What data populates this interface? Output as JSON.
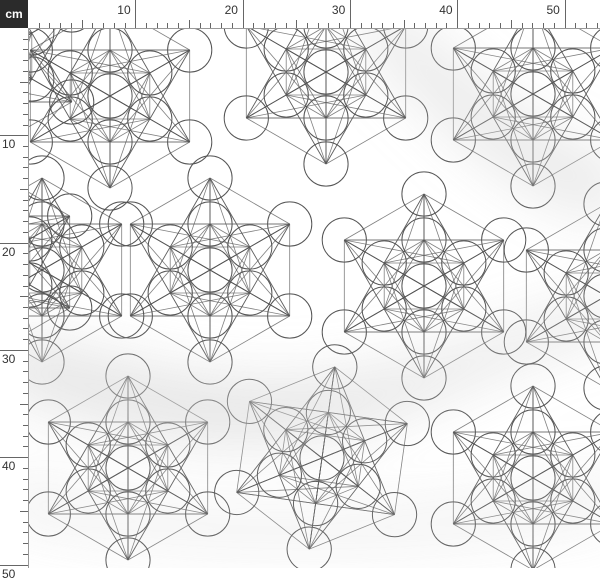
{
  "ruler": {
    "unit": "cm",
    "top_labels": [
      "10",
      "20",
      "30",
      "40",
      "50"
    ],
    "left_labels": [
      "10",
      "20",
      "30",
      "40",
      "50"
    ]
  },
  "fabric": {
    "background_color": "#ffffff",
    "line_color": "#555555",
    "shadow_color": "#cfcfcf",
    "motif": "metatrons-cube"
  }
}
